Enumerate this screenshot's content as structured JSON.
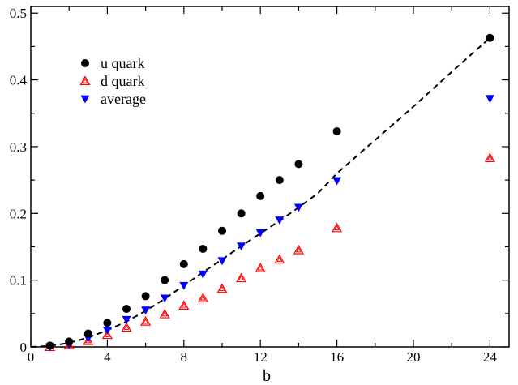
{
  "chart_data": {
    "type": "scatter",
    "title": "",
    "xlabel": "b",
    "ylabel": "",
    "xlim": [
      0,
      25
    ],
    "ylim": [
      0,
      0.51
    ],
    "grid": false,
    "legend_position": "top-left",
    "x_ticks": [
      0,
      4,
      8,
      12,
      16,
      20,
      24
    ],
    "x_tick_labels": [
      "0",
      "4",
      "8",
      "12",
      "16",
      "20",
      "24"
    ],
    "y_ticks": [
      0,
      0.1,
      0.2,
      0.3,
      0.4,
      0.5
    ],
    "y_tick_labels": [
      "0",
      "0.1",
      "0.2",
      "0.3",
      "0.4",
      "0.5"
    ],
    "series": [
      {
        "name": "u quark",
        "marker": "filled-circle",
        "color": "#000000",
        "x": [
          1,
          2,
          3,
          4,
          5,
          6,
          7,
          8,
          9,
          10,
          11,
          12,
          13,
          14,
          16,
          24
        ],
        "y": [
          0.002,
          0.008,
          0.02,
          0.036,
          0.057,
          0.076,
          0.1,
          0.124,
          0.147,
          0.174,
          0.2,
          0.226,
          0.25,
          0.274,
          0.323,
          0.463
        ]
      },
      {
        "name": "d quark",
        "marker": "open-triangle-up",
        "color": "#ff0000",
        "x": [
          1,
          2,
          3,
          4,
          5,
          6,
          7,
          8,
          9,
          10,
          11,
          12,
          13,
          14,
          16,
          24
        ],
        "y": [
          0.0,
          0.003,
          0.009,
          0.018,
          0.029,
          0.038,
          0.049,
          0.062,
          0.073,
          0.087,
          0.103,
          0.118,
          0.131,
          0.145,
          0.178,
          0.283
        ]
      },
      {
        "name": "average",
        "marker": "filled-triangle-down",
        "color": "#0000ff",
        "x": [
          1,
          2,
          3,
          4,
          5,
          6,
          7,
          8,
          9,
          10,
          11,
          12,
          13,
          14,
          16,
          24
        ],
        "y": [
          0.0,
          0.004,
          0.013,
          0.025,
          0.041,
          0.055,
          0.073,
          0.092,
          0.109,
          0.129,
          0.151,
          0.171,
          0.19,
          0.209,
          0.249,
          0.372
        ]
      }
    ],
    "fit_curve": {
      "style": "dashed",
      "color": "#000000",
      "x": [
        0,
        1,
        2,
        3,
        4,
        5,
        6,
        7,
        8,
        9,
        10,
        11,
        12,
        13,
        14,
        15,
        16,
        18,
        20,
        22,
        24
      ],
      "y": [
        0.0,
        0.0015,
        0.006,
        0.014,
        0.025,
        0.038,
        0.054,
        0.072,
        0.092,
        0.112,
        0.131,
        0.151,
        0.17,
        0.189,
        0.209,
        0.23,
        0.26,
        0.31,
        0.36,
        0.412,
        0.463
      ]
    }
  }
}
